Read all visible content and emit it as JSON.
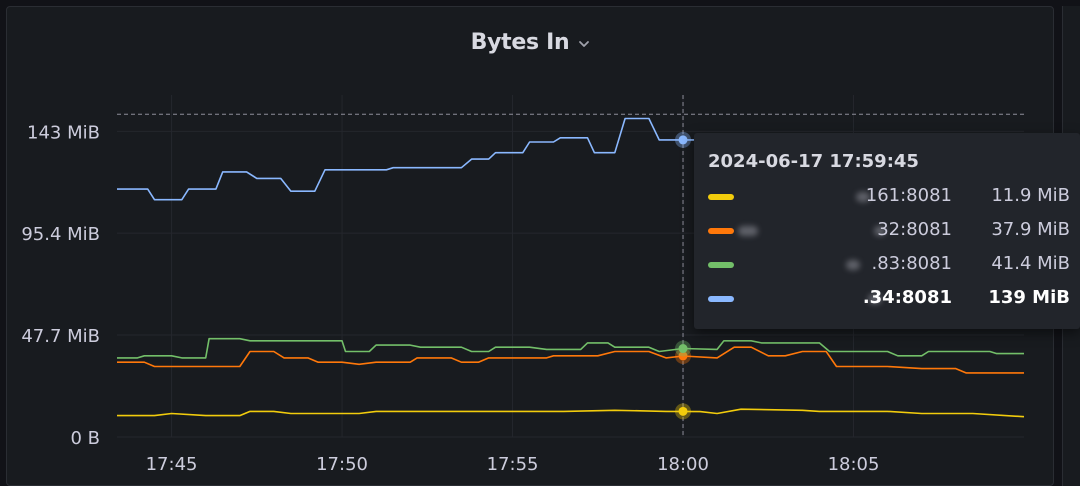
{
  "panel": {
    "title": "Bytes In"
  },
  "chart_data": {
    "type": "line",
    "title": "Bytes In",
    "y_unit": "MiB",
    "ylim": [
      0,
      160
    ],
    "y_ticks": [
      {
        "value": 0,
        "label": "0 B"
      },
      {
        "value": 47.7,
        "label": "47.7 MiB"
      },
      {
        "value": 95.4,
        "label": "95.4 MiB"
      },
      {
        "value": 143,
        "label": "143 MiB"
      }
    ],
    "x_ticks": [
      "17:45",
      "17:50",
      "17:55",
      "18:00",
      "18:05"
    ],
    "x_tick_minutes": [
      45,
      50,
      55,
      60,
      65
    ],
    "x_range_minutes": [
      43.4,
      70
    ],
    "hover_minute": 60,
    "hover_y": 151,
    "series": [
      {
        "name": "161:8081",
        "color": "#f2cc0c",
        "points": [
          [
            43.4,
            10
          ],
          [
            44.5,
            10
          ],
          [
            45.0,
            11
          ],
          [
            46.0,
            10
          ],
          [
            47.0,
            10
          ],
          [
            47.3,
            12
          ],
          [
            48.0,
            12
          ],
          [
            48.5,
            11
          ],
          [
            50.5,
            11
          ],
          [
            51.0,
            12
          ],
          [
            53.5,
            12
          ],
          [
            55.0,
            12
          ],
          [
            56.5,
            12
          ],
          [
            58.0,
            12.5
          ],
          [
            59.5,
            12
          ],
          [
            60.5,
            11.9
          ],
          [
            61.0,
            11
          ],
          [
            61.7,
            13
          ],
          [
            63.5,
            12.5
          ],
          [
            64.0,
            12
          ],
          [
            66.0,
            12
          ],
          [
            67.0,
            11
          ],
          [
            68.5,
            11
          ],
          [
            70.0,
            9.5
          ]
        ]
      },
      {
        "name": "32:8081",
        "color": "#ff780a",
        "points": [
          [
            43.4,
            35
          ],
          [
            44.2,
            35
          ],
          [
            44.5,
            33
          ],
          [
            47.0,
            33
          ],
          [
            47.3,
            40
          ],
          [
            48.0,
            40
          ],
          [
            48.3,
            37
          ],
          [
            49.0,
            37
          ],
          [
            49.3,
            35
          ],
          [
            50.0,
            35
          ],
          [
            50.5,
            34
          ],
          [
            51.0,
            35
          ],
          [
            52.0,
            35
          ],
          [
            52.2,
            37
          ],
          [
            53.2,
            37
          ],
          [
            53.5,
            35
          ],
          [
            54.0,
            35
          ],
          [
            54.3,
            37
          ],
          [
            56.0,
            37
          ],
          [
            56.2,
            38
          ],
          [
            57.5,
            38
          ],
          [
            58.0,
            40
          ],
          [
            59.0,
            40
          ],
          [
            59.5,
            37
          ],
          [
            60.0,
            37.9
          ],
          [
            61.0,
            37
          ],
          [
            61.5,
            42
          ],
          [
            62.0,
            42
          ],
          [
            62.5,
            38
          ],
          [
            63.0,
            38
          ],
          [
            63.5,
            40
          ],
          [
            64.2,
            40
          ],
          [
            64.5,
            33
          ],
          [
            66.0,
            33
          ],
          [
            67.0,
            32
          ],
          [
            68.0,
            32
          ],
          [
            68.3,
            30
          ],
          [
            70.0,
            30
          ]
        ]
      },
      {
        "name": ".83:8081",
        "color": "#73bf69",
        "points": [
          [
            43.4,
            37
          ],
          [
            44.0,
            37
          ],
          [
            44.2,
            38
          ],
          [
            45.0,
            38
          ],
          [
            45.3,
            37
          ],
          [
            46.0,
            37
          ],
          [
            46.1,
            46
          ],
          [
            47.0,
            46
          ],
          [
            47.3,
            45
          ],
          [
            50.0,
            45
          ],
          [
            50.1,
            40
          ],
          [
            50.8,
            40
          ],
          [
            51.0,
            43
          ],
          [
            52.0,
            43
          ],
          [
            52.3,
            42
          ],
          [
            53.5,
            42
          ],
          [
            53.8,
            40
          ],
          [
            54.3,
            40
          ],
          [
            54.5,
            42
          ],
          [
            55.5,
            42
          ],
          [
            56.0,
            41
          ],
          [
            57.0,
            41
          ],
          [
            57.2,
            44
          ],
          [
            57.8,
            44
          ],
          [
            58.0,
            42
          ],
          [
            59.0,
            42
          ],
          [
            59.3,
            40
          ],
          [
            60.0,
            41.4
          ],
          [
            61.0,
            41
          ],
          [
            61.2,
            45
          ],
          [
            62.0,
            45
          ],
          [
            62.3,
            44
          ],
          [
            64.0,
            44
          ],
          [
            64.3,
            40
          ],
          [
            66.0,
            40
          ],
          [
            66.3,
            38
          ],
          [
            67.0,
            38
          ],
          [
            67.2,
            40
          ],
          [
            69.0,
            40
          ],
          [
            69.2,
            39
          ],
          [
            70.0,
            39
          ]
        ]
      },
      {
        "name": ".34:8081",
        "color": "#8ab8ff",
        "points": [
          [
            43.4,
            116
          ],
          [
            44.3,
            116
          ],
          [
            44.5,
            111
          ],
          [
            45.3,
            111
          ],
          [
            45.5,
            116
          ],
          [
            46.3,
            116
          ],
          [
            46.5,
            124
          ],
          [
            47.2,
            124
          ],
          [
            47.5,
            121
          ],
          [
            48.2,
            121
          ],
          [
            48.5,
            115
          ],
          [
            49.2,
            115
          ],
          [
            49.5,
            125
          ],
          [
            51.3,
            125
          ],
          [
            51.5,
            126
          ],
          [
            53.5,
            126
          ],
          [
            53.8,
            130
          ],
          [
            54.3,
            130
          ],
          [
            54.5,
            133
          ],
          [
            55.3,
            133
          ],
          [
            55.5,
            138
          ],
          [
            56.2,
            138
          ],
          [
            56.4,
            140
          ],
          [
            57.2,
            140
          ],
          [
            57.4,
            133
          ],
          [
            58.0,
            133
          ],
          [
            58.3,
            149
          ],
          [
            59.0,
            149
          ],
          [
            59.3,
            139
          ],
          [
            60.0,
            139
          ],
          [
            61.0,
            139
          ],
          [
            62.0,
            139
          ]
        ]
      }
    ]
  },
  "tooltip": {
    "time": "2024-06-17 17:59:45",
    "rows": [
      {
        "label": "161:8081",
        "value": "11.9 MiB",
        "color": "#f2cc0c",
        "bold": false
      },
      {
        "label": "32:8081",
        "value": "37.9 MiB",
        "color": "#ff780a",
        "bold": false
      },
      {
        "label": ".83:8081",
        "value": "41.4 MiB",
        "color": "#73bf69",
        "bold": false
      },
      {
        "label": ".34:8081",
        "value": "139 MiB",
        "color": "#8ab8ff",
        "bold": true
      }
    ]
  }
}
